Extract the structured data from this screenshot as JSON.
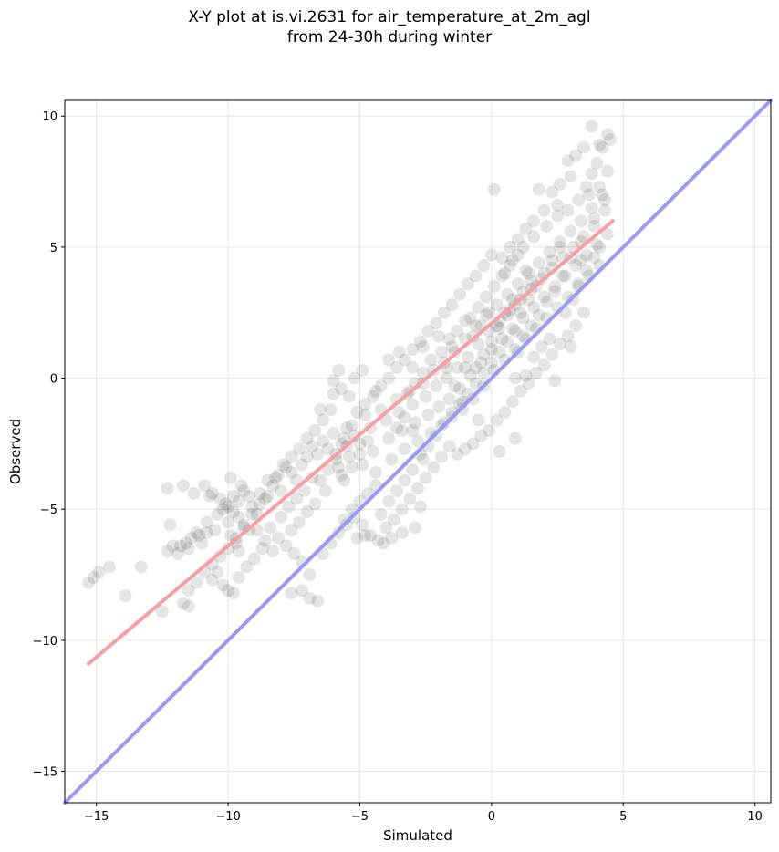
{
  "chart_data": {
    "type": "scatter",
    "title_line1": "X-Y plot at is.vi.2631 for air_temperature_at_2m_agl",
    "title_line2": "from 24-30h during winter",
    "xlabel": "Simulated",
    "ylabel": "Observed",
    "xlim": [
      -16.2,
      10.6
    ],
    "ylim": [
      -16.2,
      10.6
    ],
    "xticks": [
      -15,
      -10,
      -5,
      0,
      5,
      10
    ],
    "yticks": [
      -15,
      -10,
      -5,
      0,
      5,
      10
    ],
    "xtick_labels": [
      "−15",
      "−10",
      "−5",
      "0",
      "5",
      "10"
    ],
    "ytick_labels": [
      "−15",
      "−10",
      "−5",
      "0",
      "5",
      "10"
    ],
    "grid": true,
    "point_color": "#000000",
    "point_alpha": 0.1,
    "series": [
      {
        "values": "points",
        "color": "#000000"
      }
    ],
    "points": [
      [
        -15.3,
        -7.8
      ],
      [
        -15.1,
        -7.6
      ],
      [
        -14.9,
        -7.4
      ],
      [
        -14.5,
        -7.2
      ],
      [
        -13.9,
        -8.3
      ],
      [
        -13.3,
        -7.2
      ],
      [
        -12.5,
        -8.9
      ],
      [
        -12.3,
        -6.6
      ],
      [
        -12.1,
        -6.4
      ],
      [
        -11.9,
        -6.7
      ],
      [
        -11.8,
        -6.4
      ],
      [
        -11.6,
        -6.3
      ],
      [
        -11.4,
        -6.1
      ],
      [
        -11.2,
        -5.9
      ],
      [
        -11.7,
        -8.6
      ],
      [
        -11.5,
        -8.7
      ],
      [
        -12.2,
        -5.6
      ],
      [
        -11.0,
        -6.3
      ],
      [
        -10.8,
        -5.9
      ],
      [
        -10.6,
        -7.7
      ],
      [
        -10.4,
        -7.4
      ],
      [
        -10.2,
        -7.9
      ],
      [
        -10.0,
        -8.1
      ],
      [
        -9.8,
        -8.2
      ],
      [
        -10.9,
        -4.1
      ],
      [
        -10.6,
        -4.4
      ],
      [
        -10.3,
        -4.6
      ],
      [
        -10.0,
        -4.9
      ],
      [
        -9.8,
        -5.1
      ],
      [
        -9.6,
        -5.3
      ],
      [
        -9.4,
        -5.6
      ],
      [
        -9.2,
        -5.8
      ],
      [
        -10.2,
        -5.0
      ],
      [
        -10.0,
        -5.5
      ],
      [
        -9.9,
        -6.0
      ],
      [
        -9.7,
        -6.3
      ],
      [
        -12.3,
        -4.2
      ],
      [
        -11.7,
        -4.1
      ],
      [
        -11.3,
        -4.4
      ],
      [
        -9.9,
        -3.8
      ],
      [
        -9.6,
        -4.7
      ],
      [
        -9.4,
        -4.3
      ],
      [
        -9.1,
        -4.9
      ],
      [
        -8.9,
        -5.2
      ],
      [
        -8.8,
        -4.4
      ],
      [
        -8.6,
        -4.6
      ],
      [
        -8.5,
        -3.9
      ],
      [
        -8.3,
        -4.1
      ],
      [
        -8.1,
        -3.7
      ],
      [
        -8.0,
        -4.3
      ],
      [
        -7.8,
        -3.4
      ],
      [
        -7.6,
        -3.6
      ],
      [
        -7.4,
        -3.9
      ],
      [
        -7.2,
        -3.3
      ],
      [
        -7.0,
        -3.0
      ],
      [
        -6.8,
        -2.6
      ],
      [
        -6.6,
        -2.9
      ],
      [
        -6.4,
        -2.4
      ],
      [
        -6.2,
        -2.7
      ],
      [
        -6.0,
        -2.1
      ],
      [
        -5.9,
        -2.9
      ],
      [
        -5.8,
        -3.4
      ],
      [
        -5.7,
        -3.7
      ],
      [
        -5.6,
        -2.3
      ],
      [
        -5.5,
        -2.6
      ],
      [
        -5.4,
        -3.0
      ],
      [
        -5.3,
        -1.8
      ],
      [
        -5.2,
        -2.2
      ],
      [
        -5.0,
        -2.5
      ],
      [
        -4.9,
        -3.3
      ],
      [
        -4.8,
        -1.4
      ],
      [
        -4.6,
        -1.9
      ],
      [
        -4.5,
        -2.8
      ],
      [
        -4.4,
        -3.6
      ],
      [
        -4.2,
        -1.2
      ],
      [
        -4.0,
        -1.6
      ],
      [
        -3.9,
        -2.3
      ],
      [
        -3.8,
        -3.1
      ],
      [
        -3.6,
        -0.8
      ],
      [
        -3.5,
        -1.3
      ],
      [
        -3.4,
        -2.0
      ],
      [
        -3.3,
        -2.7
      ],
      [
        -3.1,
        -0.5
      ],
      [
        -3.0,
        -1.0
      ],
      [
        -2.9,
        -1.7
      ],
      [
        -2.8,
        -2.4
      ],
      [
        -2.6,
        -0.2
      ],
      [
        -2.5,
        -0.7
      ],
      [
        -2.4,
        -1.4
      ],
      [
        -2.3,
        -2.1
      ],
      [
        -2.2,
        0.3
      ],
      [
        -2.1,
        -0.3
      ],
      [
        -2.0,
        -1.1
      ],
      [
        -1.9,
        -1.8
      ],
      [
        -1.8,
        0.6
      ],
      [
        -1.7,
        0.0
      ],
      [
        -1.6,
        -0.8
      ],
      [
        -1.5,
        -1.5
      ],
      [
        -1.4,
        1.0
      ],
      [
        -1.3,
        0.4
      ],
      [
        -1.2,
        -0.4
      ],
      [
        -1.1,
        -1.2
      ],
      [
        -1.0,
        1.5
      ],
      [
        -0.9,
        0.8
      ],
      [
        -0.8,
        0.1
      ],
      [
        -0.7,
        -0.8
      ],
      [
        -0.6,
        2.0
      ],
      [
        -0.5,
        1.3
      ],
      [
        -0.4,
        0.6
      ],
      [
        -0.3,
        -0.3
      ],
      [
        -0.2,
        2.4
      ],
      [
        -0.1,
        1.8
      ],
      [
        0.0,
        1.1
      ],
      [
        0.1,
        0.3
      ],
      [
        0.2,
        2.8
      ],
      [
        0.3,
        2.2
      ],
      [
        0.4,
        1.5
      ],
      [
        0.5,
        0.7
      ],
      [
        0.6,
        3.2
      ],
      [
        0.7,
        2.6
      ],
      [
        0.8,
        1.9
      ],
      [
        0.9,
        1.1
      ],
      [
        1.0,
        3.6
      ],
      [
        1.1,
        3.0
      ],
      [
        1.2,
        2.3
      ],
      [
        1.3,
        1.5
      ],
      [
        1.4,
        4.0
      ],
      [
        1.5,
        3.4
      ],
      [
        1.6,
        2.7
      ],
      [
        1.7,
        1.9
      ],
      [
        1.8,
        4.4
      ],
      [
        1.9,
        3.8
      ],
      [
        2.0,
        3.1
      ],
      [
        2.1,
        2.3
      ],
      [
        2.2,
        4.8
      ],
      [
        2.3,
        4.2
      ],
      [
        2.4,
        3.5
      ],
      [
        2.5,
        2.7
      ],
      [
        2.6,
        5.2
      ],
      [
        2.7,
        4.6
      ],
      [
        2.8,
        3.9
      ],
      [
        2.9,
        3.1
      ],
      [
        3.0,
        5.6
      ],
      [
        3.1,
        5.0
      ],
      [
        3.2,
        4.3
      ],
      [
        3.3,
        3.5
      ],
      [
        3.4,
        6.0
      ],
      [
        3.5,
        5.4
      ],
      [
        3.6,
        4.7
      ],
      [
        3.7,
        3.9
      ],
      [
        3.8,
        6.5
      ],
      [
        3.9,
        5.8
      ],
      [
        4.0,
        5.1
      ],
      [
        4.1,
        4.3
      ],
      [
        4.2,
        7.0
      ],
      [
        4.3,
        6.4
      ],
      [
        3.6,
        7.3
      ],
      [
        3.8,
        7.8
      ],
      [
        4.0,
        8.2
      ],
      [
        4.2,
        8.8
      ],
      [
        4.4,
        9.3
      ],
      [
        4.5,
        9.1
      ],
      [
        3.8,
        9.6
      ],
      [
        4.1,
        8.9
      ],
      [
        3.5,
        8.8
      ],
      [
        3.2,
        8.5
      ],
      [
        2.9,
        8.3
      ],
      [
        4.4,
        7.9
      ],
      [
        3.0,
        7.7
      ],
      [
        2.6,
        7.4
      ],
      [
        2.3,
        7.1
      ],
      [
        1.8,
        7.2
      ],
      [
        0.1,
        7.2
      ],
      [
        2.5,
        6.6
      ],
      [
        2.0,
        6.4
      ],
      [
        1.6,
        6.0
      ],
      [
        1.3,
        5.7
      ],
      [
        1.0,
        5.3
      ],
      [
        0.7,
        5.0
      ],
      [
        0.4,
        4.6
      ],
      [
        0.0,
        4.7
      ],
      [
        -0.3,
        4.3
      ],
      [
        -0.6,
        3.9
      ],
      [
        -0.9,
        3.6
      ],
      [
        -1.2,
        3.2
      ],
      [
        -1.5,
        2.8
      ],
      [
        -1.8,
        2.5
      ],
      [
        -2.1,
        2.1
      ],
      [
        -2.4,
        1.8
      ],
      [
        -2.7,
        1.4
      ],
      [
        -3.0,
        1.1
      ],
      [
        -3.3,
        0.7
      ],
      [
        -3.6,
        0.4
      ],
      [
        -3.9,
        0.0
      ],
      [
        -4.2,
        -0.3
      ],
      [
        -4.5,
        -0.7
      ],
      [
        -4.8,
        -1.0
      ],
      [
        -5.1,
        -1.3
      ],
      [
        -5.4,
        -0.7
      ],
      [
        -5.7,
        -0.4
      ],
      [
        -6.0,
        -0.1
      ],
      [
        -5.8,
        0.3
      ],
      [
        -6.1,
        -1.2
      ],
      [
        -6.4,
        -1.6
      ],
      [
        -6.7,
        -2.0
      ],
      [
        -7.0,
        -2.3
      ],
      [
        -7.3,
        -2.7
      ],
      [
        -7.6,
        -3.0
      ],
      [
        -7.9,
        -3.3
      ],
      [
        -8.2,
        -3.8
      ],
      [
        -8.5,
        -4.5
      ],
      [
        -8.8,
        -4.8
      ],
      [
        -9.1,
        -5.2
      ],
      [
        -9.4,
        -5.7
      ],
      [
        -9.7,
        -6.1
      ],
      [
        -10.0,
        -6.5
      ],
      [
        -10.3,
        -6.8
      ],
      [
        -10.6,
        -7.1
      ],
      [
        -10.9,
        -7.4
      ],
      [
        -11.2,
        -7.8
      ],
      [
        -11.5,
        -8.1
      ],
      [
        -9.6,
        -7.6
      ],
      [
        -8.4,
        -5.7
      ],
      [
        -8.1,
        -6.1
      ],
      [
        -7.8,
        -6.4
      ],
      [
        -7.5,
        -6.7
      ],
      [
        -7.2,
        -7.0
      ],
      [
        -6.9,
        -7.5
      ],
      [
        -6.6,
        -8.5
      ],
      [
        -6.9,
        -8.4
      ],
      [
        -7.2,
        -8.1
      ],
      [
        -7.6,
        -8.2
      ],
      [
        -6.4,
        -6.7
      ],
      [
        -6.1,
        -6.3
      ],
      [
        -5.8,
        -5.9
      ],
      [
        -5.5,
        -5.6
      ],
      [
        -5.2,
        -5.3
      ],
      [
        -4.9,
        -5.6
      ],
      [
        -4.6,
        -6.0
      ],
      [
        -4.3,
        -6.2
      ],
      [
        -4.0,
        -5.7
      ],
      [
        -3.7,
        -5.4
      ],
      [
        -3.4,
        -5.0
      ],
      [
        -3.1,
        -4.6
      ],
      [
        -2.8,
        -4.2
      ],
      [
        -2.5,
        -3.8
      ],
      [
        -2.2,
        -3.4
      ],
      [
        -1.9,
        -3.0
      ],
      [
        -1.6,
        -2.6
      ],
      [
        -1.3,
        -2.9
      ],
      [
        -1.0,
        -2.7
      ],
      [
        -0.7,
        -2.5
      ],
      [
        -0.4,
        -2.2
      ],
      [
        -0.1,
        -2.0
      ],
      [
        0.2,
        -1.6
      ],
      [
        0.5,
        -1.3
      ],
      [
        0.8,
        -0.9
      ],
      [
        1.1,
        -0.5
      ],
      [
        1.4,
        -0.2
      ],
      [
        1.7,
        0.2
      ],
      [
        2.0,
        0.5
      ],
      [
        2.3,
        0.9
      ],
      [
        2.6,
        1.3
      ],
      [
        2.9,
        1.6
      ],
      [
        3.2,
        2.0
      ],
      [
        3.5,
        2.5
      ],
      [
        2.4,
        -0.1
      ],
      [
        3.0,
        1.2
      ],
      [
        1.3,
        0.1
      ],
      [
        0.9,
        0.0
      ],
      [
        0.3,
        -2.8
      ],
      [
        0.9,
        -2.3
      ],
      [
        -0.5,
        -1.6
      ],
      [
        -1.1,
        -0.9
      ],
      [
        -1.4,
        -0.3
      ],
      [
        -1.7,
        0.4
      ],
      [
        -2.6,
        -3.1
      ],
      [
        -3.0,
        -3.5
      ],
      [
        -3.3,
        -3.9
      ],
      [
        -3.6,
        -4.3
      ],
      [
        -3.9,
        -4.7
      ],
      [
        -4.2,
        -5.2
      ],
      [
        -4.4,
        -4.1
      ],
      [
        -4.7,
        -4.4
      ],
      [
        -5.0,
        -4.7
      ],
      [
        -5.3,
        -5.0
      ],
      [
        -5.6,
        -5.4
      ],
      [
        -2.9,
        -5.7
      ],
      [
        -2.7,
        -4.9
      ],
      [
        -3.4,
        -5.9
      ],
      [
        -3.8,
        -6.1
      ],
      [
        -4.1,
        -6.3
      ],
      [
        -4.8,
        -6.0
      ],
      [
        -5.1,
        -6.1
      ],
      [
        -0.6,
        0.4
      ],
      [
        -0.3,
        0.9
      ],
      [
        0.0,
        1.4
      ],
      [
        0.3,
        1.9
      ],
      [
        0.6,
        2.4
      ],
      [
        0.9,
        2.8
      ],
      [
        1.2,
        3.3
      ],
      [
        1.5,
        3.7
      ],
      [
        -0.8,
        2.3
      ],
      [
        -0.5,
        2.7
      ],
      [
        -0.2,
        3.1
      ],
      [
        0.1,
        3.5
      ],
      [
        0.4,
        3.9
      ],
      [
        0.7,
        4.3
      ],
      [
        1.0,
        4.7
      ],
      [
        1.3,
        4.1
      ],
      [
        -1.3,
        1.8
      ],
      [
        -1.0,
        2.2
      ],
      [
        -0.7,
        1.6
      ],
      [
        -0.4,
        2.0
      ],
      [
        -0.1,
        2.5
      ],
      [
        0.2,
        2.0
      ],
      [
        0.5,
        2.5
      ],
      [
        0.8,
        3.0
      ],
      [
        1.1,
        2.5
      ],
      [
        1.4,
        3.0
      ],
      [
        1.7,
        3.5
      ],
      [
        2.0,
        4.0
      ],
      [
        2.3,
        4.5
      ],
      [
        2.6,
        5.0
      ],
      [
        -1.9,
        1.0
      ],
      [
        -1.6,
        1.5
      ],
      [
        -2.3,
        0.7
      ],
      [
        -2.6,
        0.2
      ],
      [
        -2.9,
        -0.2
      ],
      [
        -3.2,
        -0.6
      ],
      [
        -5.5,
        -1.9
      ],
      [
        -5.7,
        -2.5
      ],
      [
        -5.9,
        -3.1
      ],
      [
        -6.2,
        -3.5
      ],
      [
        -6.5,
        -3.9
      ],
      [
        -6.3,
        -4.3
      ],
      [
        -5.6,
        -3.9
      ],
      [
        -5.3,
        -3.4
      ],
      [
        -5.0,
        -2.9
      ],
      [
        -4.7,
        -2.4
      ],
      [
        -6.7,
        -4.8
      ],
      [
        -7.0,
        -5.1
      ],
      [
        -7.3,
        -5.5
      ],
      [
        -7.6,
        -5.8
      ],
      [
        -7.1,
        -4.3
      ],
      [
        -6.8,
        -3.8
      ],
      [
        -8.7,
        -6.5
      ],
      [
        -9.0,
        -6.9
      ],
      [
        -9.3,
        -7.2
      ],
      [
        -9.6,
        -6.6
      ],
      [
        -10.5,
        -5.8
      ],
      [
        -10.8,
        -5.5
      ],
      [
        -11.1,
        -6.0
      ],
      [
        -11.5,
        -6.5
      ],
      [
        -8.9,
        -5.8
      ],
      [
        -8.6,
        -6.2
      ],
      [
        -8.3,
        -6.6
      ],
      [
        -8.0,
        -5.3
      ],
      [
        -7.7,
        -4.9
      ],
      [
        -7.4,
        -4.6
      ],
      [
        -9.2,
        -4.5
      ],
      [
        -9.5,
        -4.1
      ],
      [
        -9.8,
        -4.5
      ],
      [
        -10.1,
        -4.8
      ],
      [
        -10.4,
        -5.2
      ],
      [
        -10.7,
        -4.5
      ],
      [
        -6.5,
        -1.2
      ],
      [
        -6.0,
        -0.6
      ],
      [
        -5.2,
        0.0
      ],
      [
        -4.9,
        0.3
      ],
      [
        -4.4,
        -0.5
      ],
      [
        -3.9,
        0.7
      ],
      [
        -3.5,
        1.0
      ],
      [
        -3.0,
        0.4
      ],
      [
        -2.6,
        1.2
      ],
      [
        -2.0,
        1.6
      ],
      [
        -1.5,
        1.2
      ],
      [
        -1.0,
        0.4
      ],
      [
        0.5,
        4.0
      ],
      [
        0.8,
        4.5
      ],
      [
        1.2,
        5.0
      ],
      [
        1.6,
        5.4
      ],
      [
        2.1,
        5.8
      ],
      [
        2.5,
        6.2
      ],
      [
        2.9,
        6.4
      ],
      [
        3.3,
        6.8
      ],
      [
        3.7,
        7.0
      ],
      [
        4.1,
        7.3
      ],
      [
        4.3,
        6.8
      ],
      [
        3.9,
        6.1
      ],
      [
        3.4,
        5.2
      ],
      [
        3.0,
        4.6
      ],
      [
        2.7,
        3.9
      ],
      [
        2.4,
        3.3
      ],
      [
        2.1,
        2.9
      ],
      [
        1.8,
        2.4
      ],
      [
        1.5,
        2.0
      ],
      [
        1.2,
        1.6
      ],
      [
        0.9,
        1.8
      ],
      [
        0.6,
        1.4
      ],
      [
        0.3,
        1.0
      ],
      [
        0.0,
        0.6
      ],
      [
        -0.3,
        0.2
      ],
      [
        -0.6,
        -0.2
      ],
      [
        -0.9,
        -0.6
      ],
      [
        -1.2,
        -1.0
      ],
      [
        -1.5,
        -1.3
      ],
      [
        -1.8,
        -1.7
      ],
      [
        -2.1,
        -2.2
      ],
      [
        -2.4,
        -2.6
      ],
      [
        -2.7,
        -2.9
      ],
      [
        -3.0,
        -2.0
      ],
      [
        -3.3,
        -1.5
      ],
      [
        -3.6,
        -1.9
      ],
      [
        3.1,
        3.0
      ],
      [
        3.3,
        3.6
      ],
      [
        3.6,
        4.1
      ],
      [
        3.9,
        4.6
      ],
      [
        4.1,
        5.0
      ],
      [
        4.4,
        5.5
      ],
      [
        2.8,
        2.5
      ],
      [
        3.4,
        4.5
      ],
      [
        2.2,
        1.5
      ],
      [
        1.9,
        1.2
      ],
      [
        1.6,
        0.8
      ],
      [
        1.0,
        1.0
      ]
    ],
    "fit_line": {
      "color": "#f4a0a4",
      "from": [
        -15.3,
        -10.9
      ],
      "to": [
        4.6,
        6.0
      ]
    },
    "identity_line": {
      "color": "#9a9af0",
      "from": [
        -16.2,
        -16.2
      ],
      "to": [
        10.6,
        10.6
      ]
    }
  }
}
